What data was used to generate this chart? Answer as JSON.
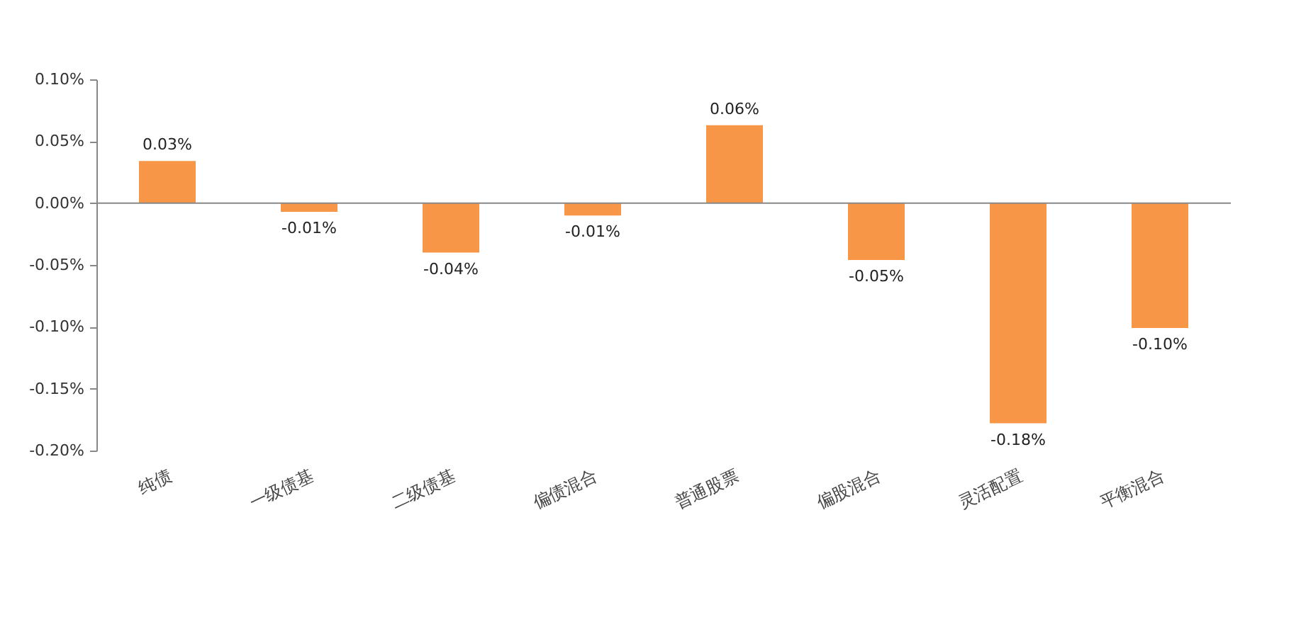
{
  "chart_data": {
    "type": "bar",
    "categories": [
      "纯债",
      "一级债基",
      "二级债基",
      "偏债混合",
      "普通股票",
      "偏股混合",
      "灵活配置",
      "平衡混合"
    ],
    "values": [
      0.034,
      -0.007,
      -0.04,
      -0.01,
      0.063,
      -0.046,
      -0.178,
      -0.101
    ],
    "value_labels": [
      "0.03%",
      "-0.01%",
      "-0.04%",
      "-0.01%",
      "0.06%",
      "-0.05%",
      "-0.18%",
      "-0.10%"
    ],
    "color": "#f79646",
    "ylim": [
      -0.2,
      0.1
    ],
    "yticks": [
      {
        "value": -0.2,
        "label": "-0.20%"
      },
      {
        "value": -0.15,
        "label": "-0.15%"
      },
      {
        "value": -0.1,
        "label": "-0.10%"
      },
      {
        "value": -0.05,
        "label": "-0.05%"
      },
      {
        "value": 0,
        "label": "0.00%"
      },
      {
        "value": 0.05,
        "label": "0.05%"
      },
      {
        "value": 0.1,
        "label": "0.10%"
      }
    ],
    "relative": false
  }
}
